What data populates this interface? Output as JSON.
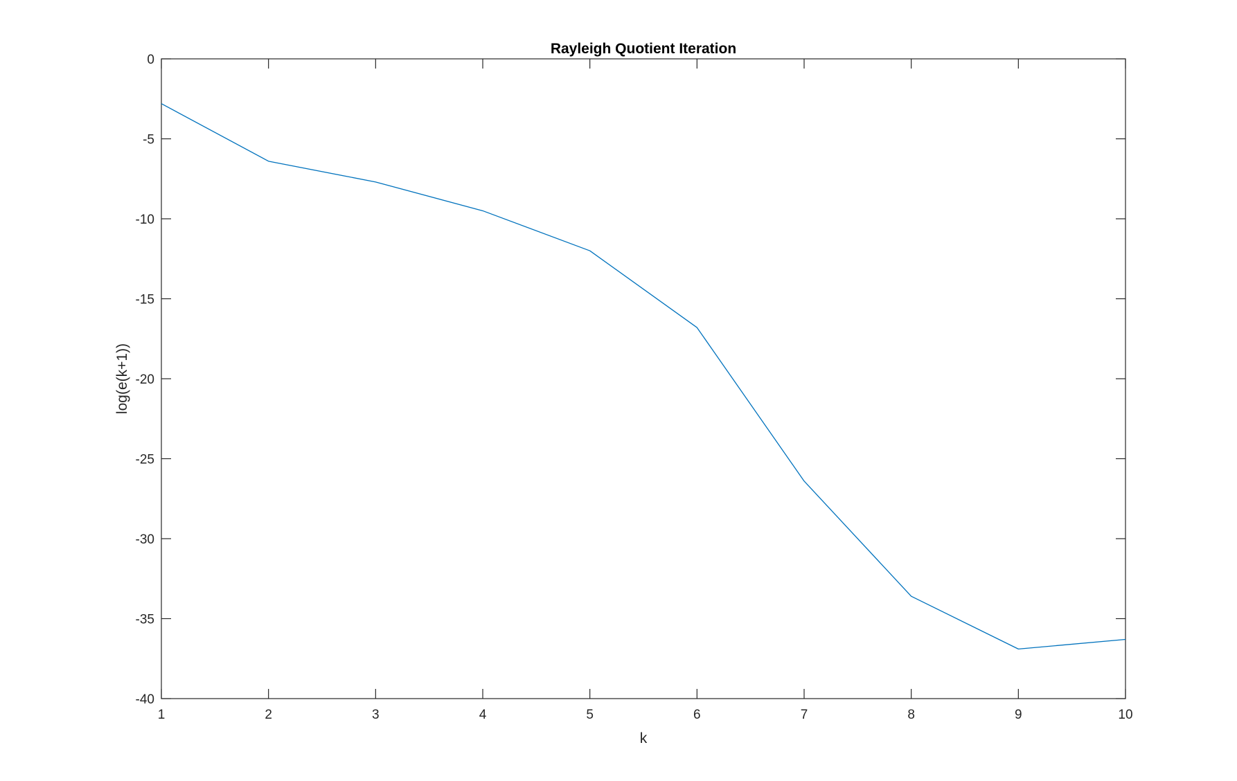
{
  "chart_data": {
    "type": "line",
    "title": "Rayleigh Quotient Iteration",
    "xlabel": "k",
    "ylabel": "log(e(k+1))",
    "xlim": [
      1,
      10
    ],
    "ylim": [
      -40,
      0
    ],
    "xticks": [
      1,
      2,
      3,
      4,
      5,
      6,
      7,
      8,
      9,
      10
    ],
    "yticks": [
      0,
      -5,
      -10,
      -15,
      -20,
      -25,
      -30,
      -35,
      -40
    ],
    "grid": false,
    "legend": "none",
    "line_color": "#0072BD",
    "axis_color": "#262626",
    "series": [
      {
        "x": [
          1,
          2,
          3,
          4,
          5,
          6,
          7,
          8,
          9,
          10
        ],
        "values": [
          -2.8,
          -6.4,
          -7.7,
          -9.5,
          -12.0,
          -16.8,
          -26.4,
          -33.6,
          -36.9,
          -36.3
        ]
      }
    ]
  }
}
